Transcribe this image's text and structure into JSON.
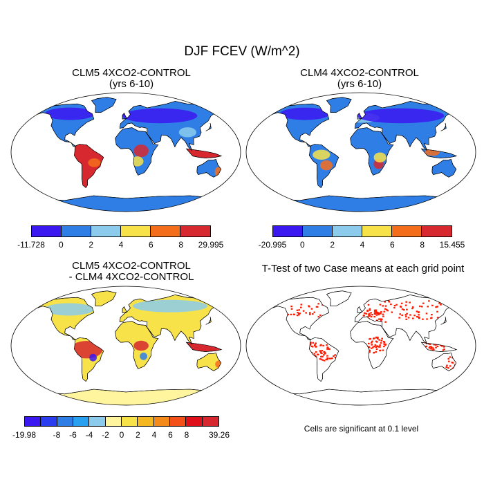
{
  "main_title": "DJF FCEV (W/m^2)",
  "panels": [
    {
      "id": "tl",
      "title_line1": "CLM5 4XCO2-CONTROL",
      "title_line2": "(yrs 6-10)",
      "palette": "abs5"
    },
    {
      "id": "tr",
      "title_line1": "CLM4 4XCO2-CONTROL",
      "title_line2": "(yrs 6-10)",
      "palette": "abs4"
    },
    {
      "id": "bl",
      "title_line1": "CLM5 4XCO2-CONTROL",
      "title_line2": "- CLM4 4XCO2-CONTROL",
      "palette": "diff"
    },
    {
      "id": "br",
      "title_line1": "T-Test of two Case means at each grid point",
      "title_line2": "",
      "palette": "ttest"
    }
  ],
  "colorbars": {
    "top_left": {
      "colors": [
        "#3b17f0",
        "#2f7ee6",
        "#8ccbec",
        "#f7e24a",
        "#f46d1b",
        "#d6282e"
      ],
      "labels": [
        "-11.728",
        "0",
        "2",
        "4",
        "6",
        "8",
        "29.995"
      ]
    },
    "top_right": {
      "colors": [
        "#3b17f0",
        "#2f7ee6",
        "#8ccbec",
        "#f7e24a",
        "#f46d1b",
        "#d6282e"
      ],
      "labels": [
        "-20.995",
        "0",
        "2",
        "4",
        "6",
        "8",
        "15.455"
      ]
    },
    "bottom_left": {
      "colors": [
        "#3b17f0",
        "#2a3ef0",
        "#2f7ee6",
        "#2aa0f0",
        "#8ccbec",
        "#fff59e",
        "#f7e24a",
        "#f5b820",
        "#f48a1a",
        "#f4511a",
        "#e0101b",
        "#d6282e"
      ],
      "labels": [
        "-19.98",
        "-8",
        "-6",
        "-4",
        "-2",
        "0",
        "2",
        "4",
        "6",
        "8",
        "39.26"
      ],
      "label_positions": [
        0,
        2,
        3,
        4,
        5,
        6,
        7,
        8,
        9,
        10,
        12
      ]
    }
  },
  "ttest_note": "Cells are significant at 0.1 level",
  "colors": {
    "ocean": "#ffffff",
    "coast": "#000000",
    "ttest_sig": "#ff1a00"
  }
}
